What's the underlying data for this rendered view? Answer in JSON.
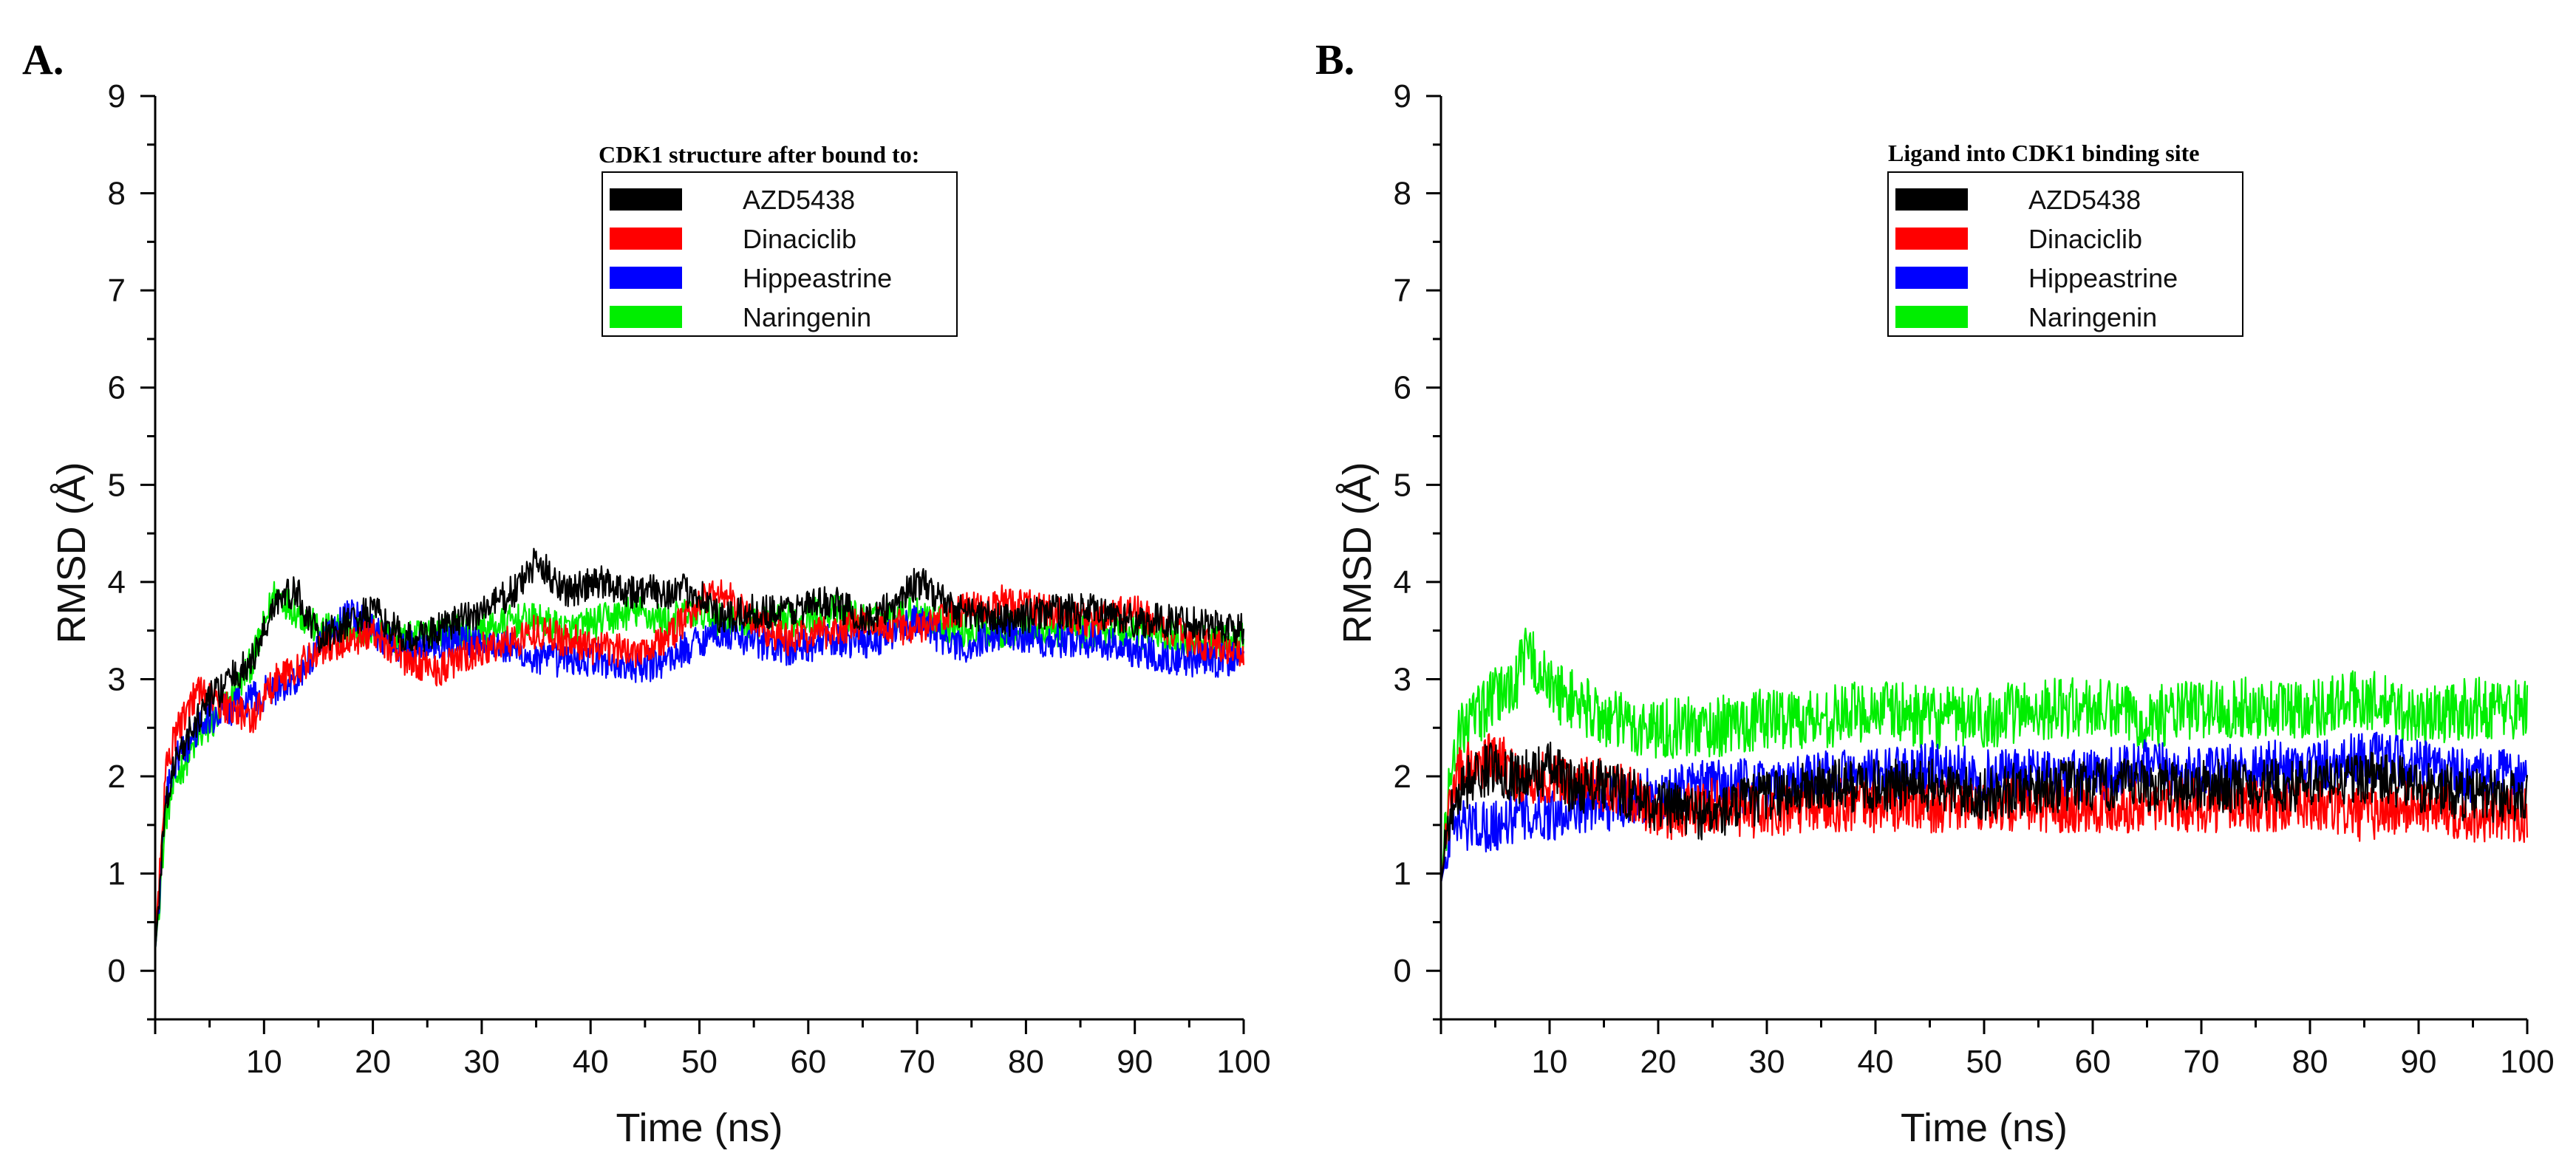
{
  "colors": {
    "AZD5438": "#000000",
    "Dinaciclib": "#ff0000",
    "Hippeastrine": "#0000ff",
    "Naringenin": "#00ee00"
  },
  "chart_data": [
    {
      "type": "line",
      "panel_label": "A.",
      "title": "",
      "xlabel": "Time (ns)",
      "ylabel": "RMSD (Å)",
      "xlim": [
        0,
        100
      ],
      "ylim": [
        -0.5,
        9
      ],
      "x_ticks": [
        10,
        20,
        30,
        40,
        50,
        60,
        70,
        80,
        90,
        100
      ],
      "y_ticks": [
        0,
        1,
        2,
        3,
        4,
        5,
        6,
        7,
        8,
        9
      ],
      "grid": false,
      "legend_title": "CDK1 structure after bound to:",
      "legend_position": "top-center",
      "x": [
        0,
        1,
        2,
        3,
        4,
        5,
        7,
        9,
        11,
        13,
        15,
        18,
        20,
        23,
        26,
        30,
        33,
        35,
        38,
        41,
        44,
        47,
        50,
        52,
        55,
        58,
        62,
        66,
        70,
        74,
        78,
        82,
        86,
        90,
        95,
        100
      ],
      "series": [
        {
          "name": "AZD5438",
          "values": [
            0.2,
            1.8,
            2.2,
            2.4,
            2.6,
            2.8,
            3.0,
            3.2,
            3.8,
            3.9,
            3.4,
            3.6,
            3.7,
            3.4,
            3.5,
            3.7,
            3.9,
            4.2,
            3.9,
            4.0,
            3.9,
            3.9,
            3.9,
            3.6,
            3.7,
            3.7,
            3.8,
            3.6,
            4.0,
            3.7,
            3.6,
            3.7,
            3.7,
            3.6,
            3.6,
            3.5
          ]
        },
        {
          "name": "Dinaciclib",
          "values": [
            0.3,
            2.1,
            2.5,
            2.7,
            2.9,
            2.8,
            2.7,
            2.6,
            3.0,
            3.1,
            3.3,
            3.4,
            3.5,
            3.2,
            3.1,
            3.3,
            3.4,
            3.5,
            3.4,
            3.3,
            3.3,
            3.4,
            3.8,
            3.9,
            3.6,
            3.4,
            3.5,
            3.6,
            3.5,
            3.7,
            3.8,
            3.7,
            3.6,
            3.7,
            3.4,
            3.3
          ]
        },
        {
          "name": "Hippeastrine",
          "values": [
            0.2,
            1.8,
            2.2,
            2.3,
            2.5,
            2.6,
            2.7,
            2.8,
            2.9,
            3.0,
            3.3,
            3.7,
            3.5,
            3.3,
            3.4,
            3.4,
            3.3,
            3.2,
            3.2,
            3.2,
            3.1,
            3.2,
            3.4,
            3.5,
            3.4,
            3.3,
            3.4,
            3.4,
            3.6,
            3.3,
            3.5,
            3.4,
            3.4,
            3.3,
            3.2,
            3.2
          ]
        },
        {
          "name": "Naringenin",
          "values": [
            0.2,
            1.6,
            2.0,
            2.2,
            2.4,
            2.5,
            2.8,
            3.2,
            3.9,
            3.7,
            3.5,
            3.5,
            3.5,
            3.4,
            3.5,
            3.5,
            3.6,
            3.6,
            3.5,
            3.6,
            3.7,
            3.6,
            3.7,
            3.6,
            3.6,
            3.6,
            3.7,
            3.6,
            3.7,
            3.5,
            3.5,
            3.5,
            3.5,
            3.5,
            3.4,
            3.4
          ]
        }
      ]
    },
    {
      "type": "line",
      "panel_label": "B.",
      "title": "",
      "xlabel": "Time (ns)",
      "ylabel": "RMSD (Å)",
      "xlim": [
        0,
        100
      ],
      "ylim": [
        -0.5,
        9
      ],
      "x_ticks": [
        10,
        20,
        30,
        40,
        50,
        60,
        70,
        80,
        90,
        100
      ],
      "y_ticks": [
        0,
        1,
        2,
        3,
        4,
        5,
        6,
        7,
        8,
        9
      ],
      "grid": false,
      "legend_title": "Ligand into CDK1 binding site",
      "legend_position": "top-center",
      "x": [
        0,
        1,
        2,
        3,
        5,
        7,
        8,
        10,
        12,
        15,
        18,
        20,
        25,
        30,
        35,
        40,
        45,
        50,
        55,
        60,
        65,
        70,
        75,
        80,
        85,
        90,
        95,
        100
      ],
      "series": [
        {
          "name": "AZD5438",
          "values": [
            0.9,
            1.7,
            1.9,
            2.0,
            2.1,
            2.0,
            2.0,
            2.1,
            1.9,
            1.9,
            1.8,
            1.7,
            1.6,
            1.8,
            1.9,
            1.9,
            1.9,
            1.8,
            1.9,
            1.9,
            1.9,
            1.9,
            1.9,
            1.9,
            2.0,
            1.9,
            1.8,
            1.8
          ]
        },
        {
          "name": "Dinaciclib",
          "values": [
            0.9,
            1.8,
            2.1,
            2.1,
            2.2,
            2.0,
            1.9,
            2.0,
            2.0,
            1.9,
            1.8,
            1.6,
            1.7,
            1.6,
            1.7,
            1.7,
            1.7,
            1.7,
            1.7,
            1.7,
            1.7,
            1.7,
            1.7,
            1.7,
            1.6,
            1.7,
            1.6,
            1.6
          ]
        },
        {
          "name": "Hippeastrine",
          "values": [
            0.9,
            1.5,
            1.5,
            1.5,
            1.5,
            1.6,
            1.6,
            1.6,
            1.7,
            1.7,
            1.8,
            1.8,
            1.9,
            1.9,
            2.0,
            2.0,
            2.1,
            2.0,
            2.0,
            2.0,
            2.1,
            2.0,
            2.1,
            2.1,
            2.2,
            2.1,
            2.0,
            2.0
          ]
        },
        {
          "name": "Naringenin",
          "values": [
            0.9,
            2.2,
            2.5,
            2.6,
            2.8,
            3.0,
            3.3,
            2.9,
            2.8,
            2.6,
            2.5,
            2.5,
            2.5,
            2.6,
            2.6,
            2.7,
            2.6,
            2.6,
            2.7,
            2.7,
            2.6,
            2.7,
            2.7,
            2.7,
            2.8,
            2.6,
            2.7,
            2.7
          ]
        }
      ]
    }
  ]
}
